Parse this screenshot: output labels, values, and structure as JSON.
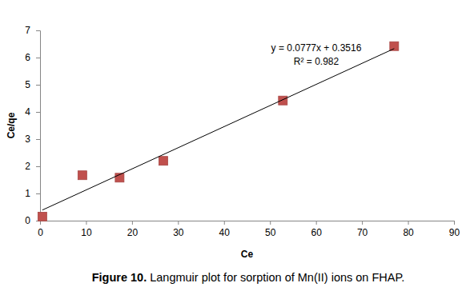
{
  "chart_data": {
    "type": "scatter",
    "title": "Figure 10. Langmuir plot for sorption of Mn(II) ions on FHAP.",
    "x_label": "Ce",
    "y_label": "Ce/qe",
    "annotations": [
      "y = 0.0777x + 0.3516",
      "R² = 0.982"
    ],
    "xlim": [
      0,
      90
    ],
    "xticks": [
      0,
      10,
      20,
      30,
      40,
      50,
      60,
      70,
      80,
      90
    ],
    "ylim": [
      0,
      7
    ],
    "yticks": [
      0,
      1,
      2,
      3,
      4,
      5,
      6,
      7
    ],
    "grid": false,
    "series": [
      {
        "type": "scatter",
        "marker": "square",
        "color": "#c0504d",
        "x": [
          0.5,
          9.2,
          17.3,
          26.8,
          52.8,
          77.0
        ],
        "values": [
          0.15,
          1.67,
          1.58,
          2.2,
          4.42,
          6.42
        ]
      },
      {
        "type": "line",
        "line_style": "solid",
        "color": "#000000",
        "x": [
          0.5,
          77.0
        ],
        "values": [
          0.39,
          6.33
        ]
      }
    ]
  }
}
